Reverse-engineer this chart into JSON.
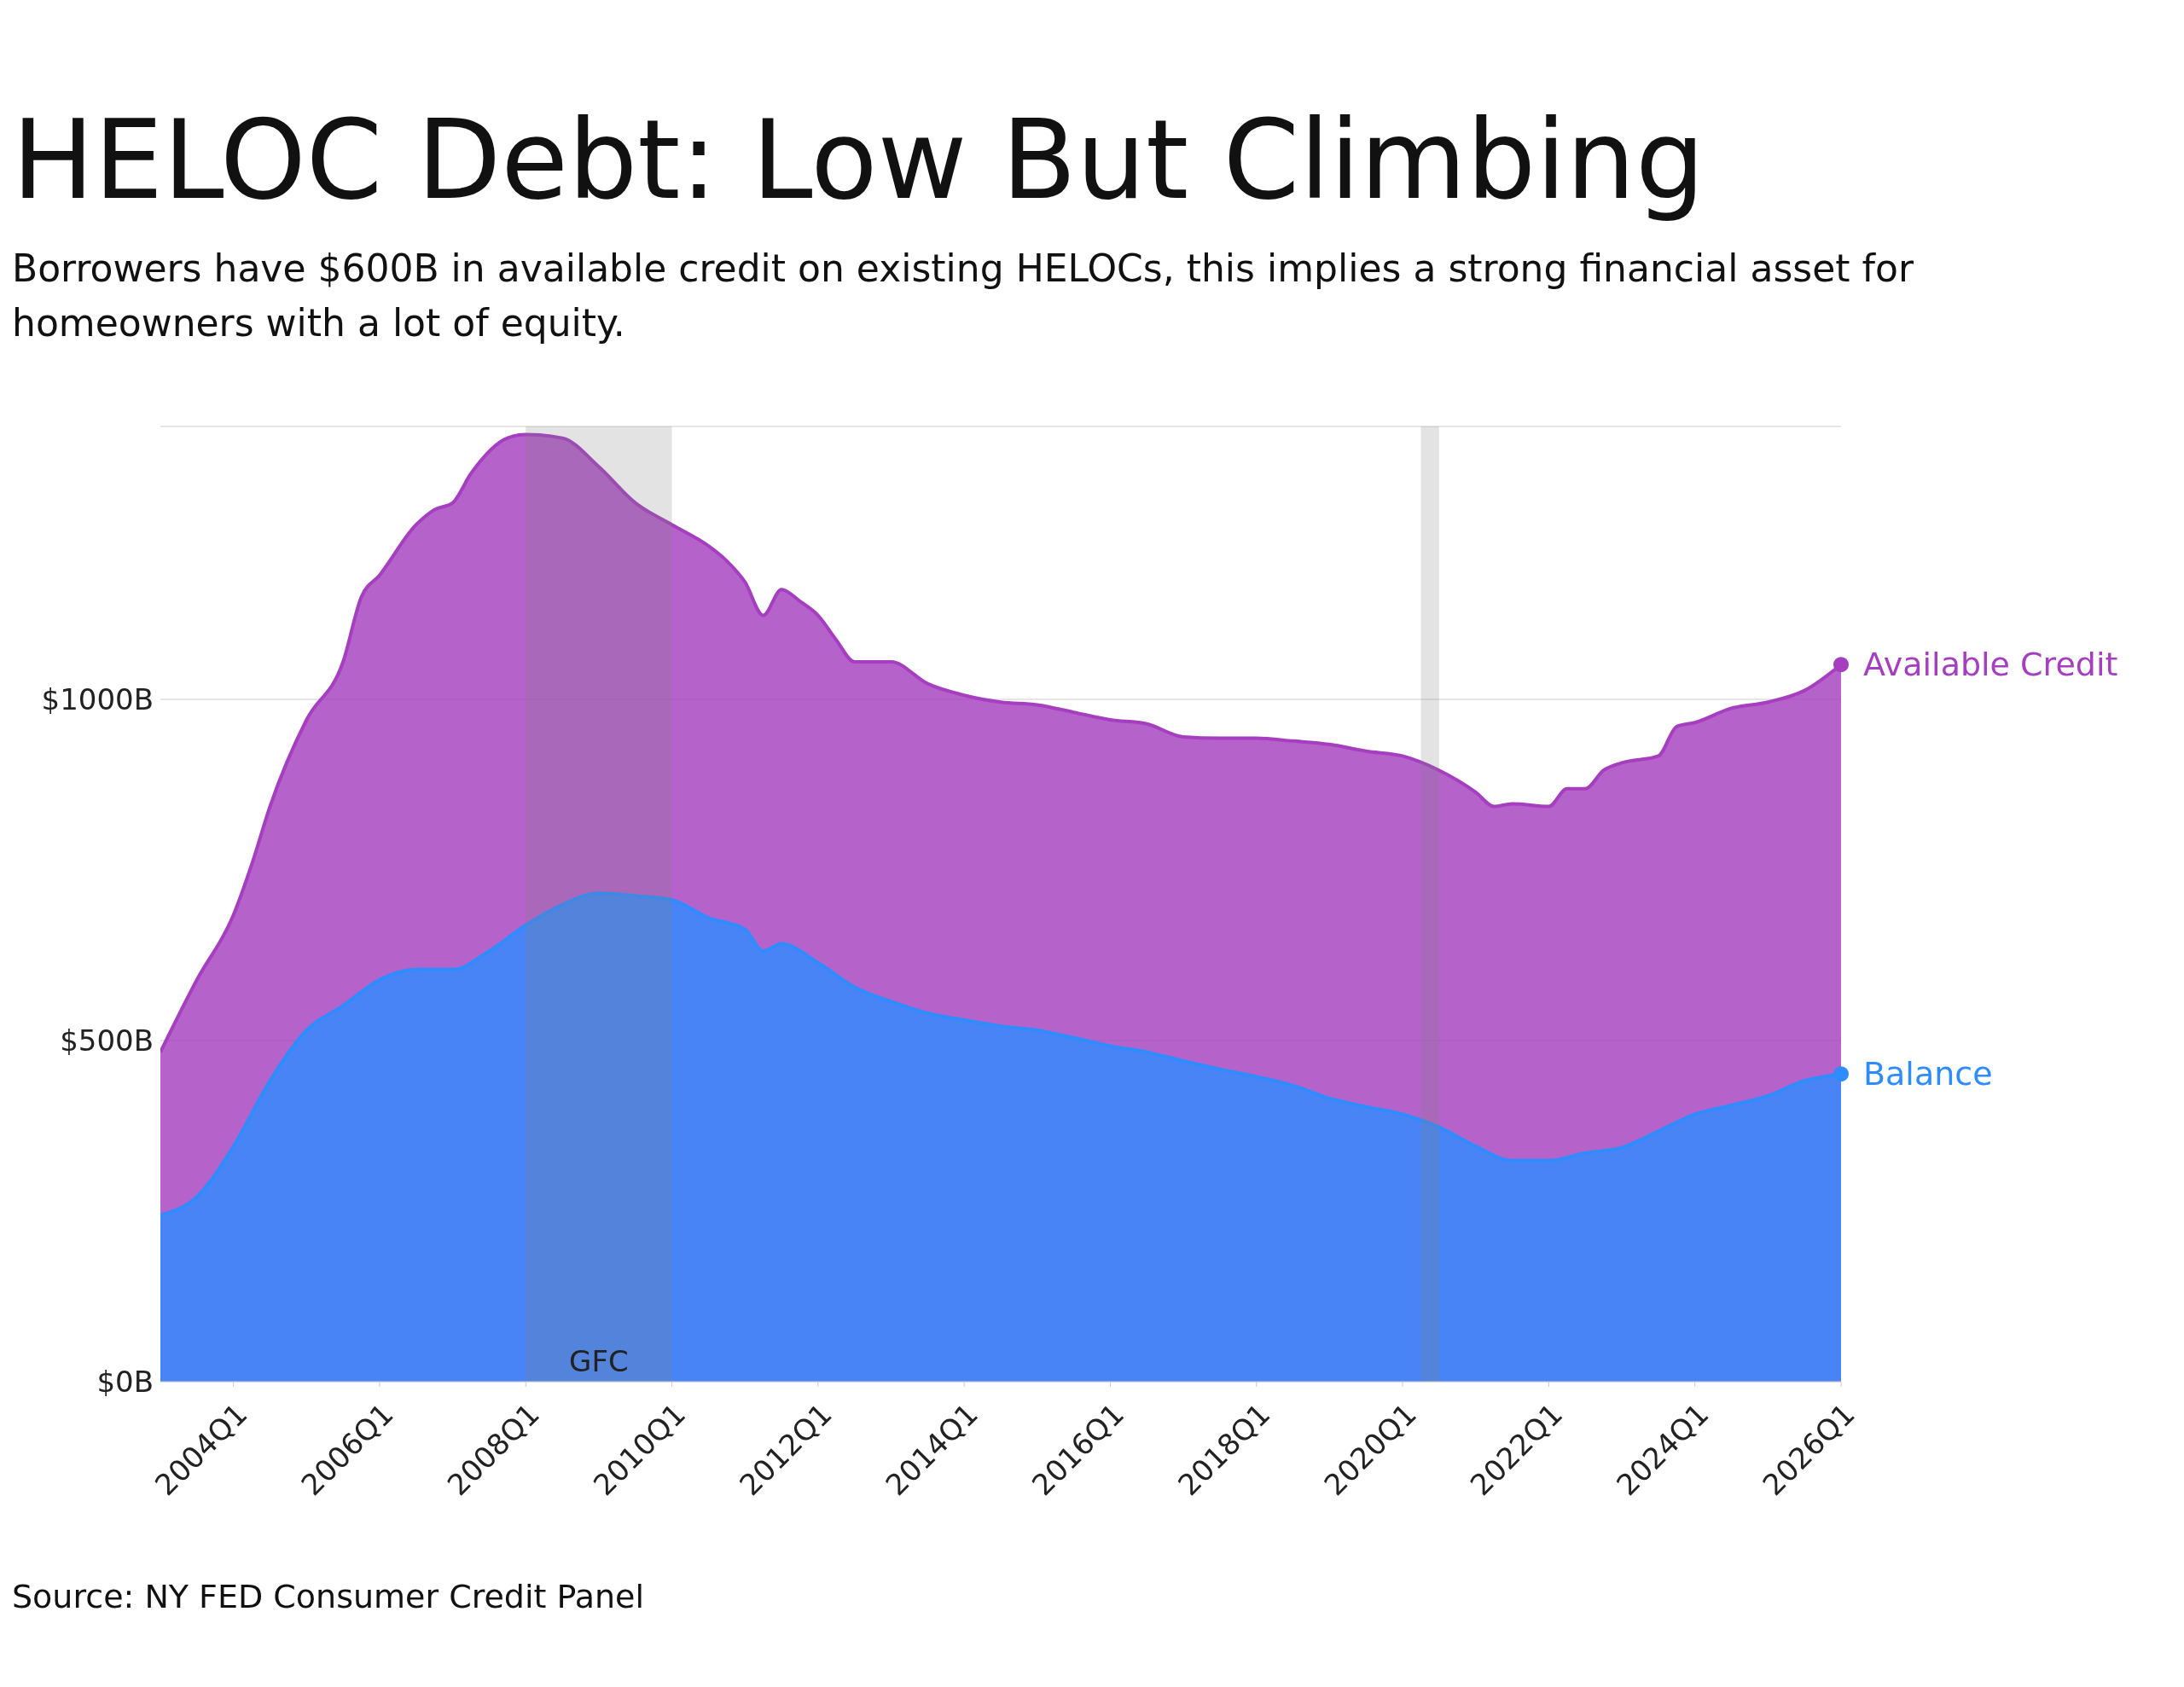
{
  "chart_data": {
    "type": "area",
    "title": "HELOC Debt: Low But Climbing",
    "subtitle": "Borrowers have $600B in available credit on existing HELOCs, this implies a strong financial asset for homeowners with a lot of equity.",
    "series": [
      {
        "name": "Available Credit",
        "color": "#a53fbf",
        "x": [
          "2003-01",
          "2003-07",
          "2004-01",
          "2004-04",
          "2004-07",
          "2005-01",
          "2005-07",
          "2005-10",
          "2006-01",
          "2006-07",
          "2006-10",
          "2007-01",
          "2007-04",
          "2007-10",
          "2008-01",
          "2008-07",
          "2009-01",
          "2009-07",
          "2010-01",
          "2010-07",
          "2010-10",
          "2011-01",
          "2011-04",
          "2011-07",
          "2011-10",
          "2012-01",
          "2012-04",
          "2012-07",
          "2013-01",
          "2013-07",
          "2014-01",
          "2014-07",
          "2015-01",
          "2015-07",
          "2016-01",
          "2016-07",
          "2017-01",
          "2017-07",
          "2018-01",
          "2018-07",
          "2019-01",
          "2019-07",
          "2020-01",
          "2020-07",
          "2021-01",
          "2021-04",
          "2021-07",
          "2022-01",
          "2022-04",
          "2022-07",
          "2022-10",
          "2023-01",
          "2023-07",
          "2023-10",
          "2024-01",
          "2024-07",
          "2025-01",
          "2025-07",
          "2026-01"
        ],
        "values": [
          483,
          589,
          684,
          758,
          843,
          970,
          1055,
          1150,
          1182,
          1256,
          1278,
          1288,
          1331,
          1383,
          1388,
          1383,
          1341,
          1288,
          1256,
          1225,
          1203,
          1172,
          1123,
          1161,
          1144,
          1123,
          1087,
          1055,
          1055,
          1023,
          1006,
          996,
          992,
          981,
          970,
          964,
          945,
          943,
          943,
          939,
          934,
          924,
          917,
          896,
          864,
          843,
          847,
          843,
          869,
          869,
          896,
          907,
          917,
          960,
          966,
          987,
          996,
          1013,
          1051
        ]
      },
      {
        "name": "Balance",
        "color": "#2f8cff",
        "x": [
          "2003-01",
          "2003-07",
          "2004-01",
          "2004-07",
          "2005-01",
          "2005-07",
          "2006-01",
          "2006-07",
          "2007-01",
          "2007-07",
          "2008-01",
          "2008-07",
          "2009-01",
          "2009-07",
          "2010-01",
          "2010-07",
          "2011-01",
          "2011-04",
          "2011-07",
          "2012-01",
          "2012-07",
          "2013-01",
          "2013-07",
          "2014-01",
          "2014-07",
          "2015-01",
          "2015-07",
          "2016-01",
          "2016-07",
          "2017-01",
          "2017-07",
          "2018-01",
          "2018-07",
          "2019-01",
          "2019-07",
          "2020-01",
          "2020-07",
          "2021-01",
          "2021-07",
          "2022-01",
          "2022-07",
          "2023-01",
          "2023-07",
          "2024-01",
          "2024-07",
          "2025-01",
          "2025-07",
          "2026-01"
        ],
        "values": [
          244,
          271,
          345,
          441,
          515,
          551,
          589,
          604,
          604,
          631,
          669,
          699,
          716,
          712,
          706,
          680,
          663,
          631,
          642,
          614,
          578,
          557,
          540,
          530,
          521,
          515,
          504,
          492,
          483,
          470,
          458,
          447,
          434,
          415,
          403,
          392,
          373,
          345,
          324,
          324,
          335,
          343,
          367,
          392,
          405,
          419,
          441,
          451
        ]
      }
    ],
    "xlim": [
      "2003-01",
      "2026-01"
    ],
    "xticks": [
      {
        "value": "2004-01",
        "label": "2004Q1"
      },
      {
        "value": "2006-01",
        "label": "2006Q1"
      },
      {
        "value": "2008-01",
        "label": "2008Q1"
      },
      {
        "value": "2010-01",
        "label": "2010Q1"
      },
      {
        "value": "2012-01",
        "label": "2012Q1"
      },
      {
        "value": "2014-01",
        "label": "2014Q1"
      },
      {
        "value": "2016-01",
        "label": "2016Q1"
      },
      {
        "value": "2018-01",
        "label": "2018Q1"
      },
      {
        "value": "2020-01",
        "label": "2020Q1"
      },
      {
        "value": "2022-01",
        "label": "2022Q1"
      },
      {
        "value": "2024-01",
        "label": "2024Q1"
      },
      {
        "value": "2026-01",
        "label": "2026Q1"
      }
    ],
    "ylim": [
      0,
      1400
    ],
    "yticks": [
      {
        "value": 0,
        "label": "$0B"
      },
      {
        "value": 500,
        "label": "$500B"
      },
      {
        "value": 1000,
        "label": "$1000B"
      }
    ],
    "grid": "y",
    "marker": "none",
    "bands": [
      {
        "axis": "x",
        "from": "2008-01",
        "to": "2010-01",
        "label": "GFC",
        "color": "#808080"
      },
      {
        "axis": "x",
        "from": "2020-04",
        "to": "2020-07",
        "color": "#808080"
      }
    ],
    "annotations": [
      "Source: NY FED Consumer Credit Panel"
    ]
  }
}
